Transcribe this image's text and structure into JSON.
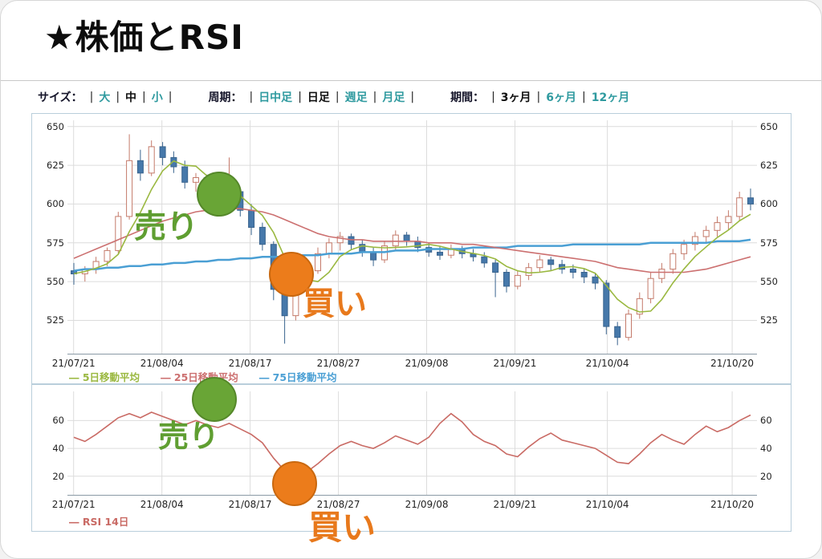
{
  "page": {
    "title": "★株価とRSI"
  },
  "toolbar": {
    "separator": "|",
    "size": {
      "label": "サイズ：",
      "options": [
        {
          "label": "大",
          "selected": false
        },
        {
          "label": "中",
          "selected": true
        },
        {
          "label": "小",
          "selected": false
        }
      ]
    },
    "period": {
      "label": "周期：",
      "options": [
        {
          "label": "日中足",
          "selected": false
        },
        {
          "label": "日足",
          "selected": true
        },
        {
          "label": "週足",
          "selected": false
        },
        {
          "label": "月足",
          "selected": false
        }
      ]
    },
    "range": {
      "label": "期間：",
      "options": [
        {
          "label": "3ヶ月",
          "selected": true
        },
        {
          "label": "6ヶ月",
          "selected": false
        },
        {
          "label": "12ヶ月",
          "selected": false
        }
      ]
    }
  },
  "annotations": {
    "sell_label": "売り",
    "buy_label": "買い",
    "sell_color": "#5f9e31",
    "buy_color": "#e8791c"
  },
  "chart_data": [
    {
      "type": "candlestick",
      "name": "price-chart",
      "dash": "―",
      "x_ticks": [
        "21/07/21",
        "21/08/04",
        "21/08/17",
        "21/08/27",
        "21/09/08",
        "21/09/21",
        "21/10/04",
        "21/10/20"
      ],
      "x_tick_pos": [
        0.009,
        0.137,
        0.265,
        0.393,
        0.521,
        0.649,
        0.783,
        0.964
      ],
      "y_ticks": [
        650,
        625,
        600,
        575,
        550,
        525
      ],
      "y_min": 503,
      "y_max": 654,
      "grid_color": "#dcdcdc",
      "axis_color": "#8a9aa5",
      "up_color": "#ffffff",
      "up_stroke": "#c47a6a",
      "down_color": "#4678aa",
      "down_stroke": "#3a648e",
      "candles": [
        [
          557,
          562,
          548,
          555
        ],
        [
          555,
          560,
          550,
          558
        ],
        [
          558,
          566,
          555,
          563
        ],
        [
          563,
          572,
          560,
          570
        ],
        [
          570,
          595,
          568,
          592
        ],
        [
          592,
          645,
          590,
          628
        ],
        [
          628,
          635,
          615,
          620
        ],
        [
          620,
          641,
          618,
          637
        ],
        [
          637,
          640,
          625,
          630
        ],
        [
          630,
          634,
          620,
          624
        ],
        [
          624,
          628,
          610,
          614
        ],
        [
          614,
          620,
          608,
          617
        ],
        [
          617,
          619,
          603,
          606
        ],
        [
          606,
          610,
          596,
          600
        ],
        [
          600,
          630,
          598,
          608
        ],
        [
          608,
          610,
          592,
          596
        ],
        [
          596,
          600,
          580,
          585
        ],
        [
          585,
          588,
          570,
          574
        ],
        [
          574,
          576,
          538,
          545
        ],
        [
          545,
          548,
          510,
          528
        ],
        [
          528,
          556,
          525,
          552
        ],
        [
          552,
          560,
          548,
          557
        ],
        [
          557,
          572,
          555,
          568
        ],
        [
          568,
          578,
          565,
          575
        ],
        [
          575,
          582,
          570,
          579
        ],
        [
          579,
          581,
          571,
          574
        ],
        [
          574,
          577,
          566,
          569
        ],
        [
          569,
          572,
          560,
          564
        ],
        [
          564,
          576,
          562,
          573
        ],
        [
          573,
          583,
          570,
          580
        ],
        [
          580,
          582,
          573,
          576
        ],
        [
          576,
          579,
          569,
          572
        ],
        [
          572,
          575,
          566,
          569
        ],
        [
          569,
          573,
          564,
          567
        ],
        [
          567,
          574,
          565,
          571
        ],
        [
          571,
          573,
          565,
          568
        ],
        [
          568,
          571,
          563,
          566
        ],
        [
          566,
          569,
          559,
          562
        ],
        [
          562,
          564,
          540,
          556
        ],
        [
          556,
          558,
          543,
          547
        ],
        [
          547,
          557,
          545,
          554
        ],
        [
          554,
          562,
          551,
          559
        ],
        [
          559,
          567,
          556,
          564
        ],
        [
          564,
          566,
          557,
          561
        ],
        [
          561,
          564,
          555,
          558
        ],
        [
          558,
          561,
          552,
          556
        ],
        [
          556,
          558,
          549,
          553
        ],
        [
          553,
          555,
          545,
          549
        ],
        [
          549,
          551,
          516,
          521
        ],
        [
          521,
          524,
          509,
          514
        ],
        [
          514,
          532,
          512,
          529
        ],
        [
          529,
          543,
          526,
          539
        ],
        [
          539,
          556,
          536,
          552
        ],
        [
          552,
          562,
          549,
          558
        ],
        [
          558,
          571,
          555,
          568
        ],
        [
          568,
          577,
          564,
          574
        ],
        [
          574,
          582,
          570,
          579
        ],
        [
          579,
          586,
          575,
          583
        ],
        [
          583,
          592,
          579,
          588
        ],
        [
          588,
          596,
          583,
          592
        ],
        [
          592,
          608,
          589,
          604
        ],
        [
          604,
          610,
          596,
          600
        ]
      ],
      "ma25": [
        565,
        568,
        571,
        574,
        577,
        580,
        583,
        586,
        589,
        591,
        593,
        595,
        596,
        597,
        597,
        597,
        596,
        595,
        593,
        590,
        587,
        584,
        581,
        579,
        578,
        577,
        577,
        576,
        576,
        576,
        576,
        576,
        575,
        575,
        575,
        574,
        574,
        573,
        572,
        571,
        570,
        569,
        568,
        567,
        566,
        565,
        564,
        563,
        561,
        559,
        558,
        557,
        556,
        556,
        556,
        556,
        557,
        558,
        560,
        562,
        564,
        566
      ],
      "ma75": [
        557,
        558,
        558,
        559,
        559,
        560,
        560,
        561,
        561,
        562,
        562,
        563,
        563,
        564,
        564,
        565,
        565,
        566,
        566,
        566,
        567,
        567,
        567,
        568,
        568,
        568,
        569,
        569,
        569,
        570,
        570,
        570,
        571,
        571,
        571,
        571,
        572,
        572,
        572,
        572,
        573,
        573,
        573,
        573,
        573,
        574,
        574,
        574,
        574,
        574,
        574,
        574,
        575,
        575,
        575,
        575,
        575,
        575,
        576,
        576,
        576,
        577
      ],
      "legend": [
        {
          "label": "5日移動平均",
          "color": "#9ab840"
        },
        {
          "label": "25日移動平均",
          "color": "#cc7070"
        },
        {
          "label": "75日移動平均",
          "color": "#4a9fd4"
        }
      ]
    },
    {
      "type": "line",
      "name": "rsi-chart",
      "dash": "―",
      "x_ticks": [
        "21/07/21",
        "21/08/04",
        "21/08/17",
        "21/08/27",
        "21/09/08",
        "21/09/21",
        "21/10/04",
        "21/10/20"
      ],
      "x_tick_pos": [
        0.009,
        0.137,
        0.265,
        0.393,
        0.521,
        0.649,
        0.783,
        0.964
      ],
      "y_ticks": [
        60,
        40,
        20
      ],
      "y_min": 6,
      "y_max": 81,
      "grid_color": "#dcdcdc",
      "axis_color": "#8a9aa5",
      "line_color": "#c96a64",
      "values": [
        48,
        45,
        50,
        56,
        62,
        65,
        62,
        66,
        63,
        60,
        57,
        60,
        57,
        55,
        58,
        54,
        50,
        44,
        33,
        24,
        20,
        23,
        29,
        36,
        42,
        45,
        42,
        40,
        44,
        49,
        46,
        43,
        48,
        58,
        65,
        59,
        50,
        45,
        42,
        36,
        34,
        41,
        47,
        51,
        46,
        44,
        42,
        40,
        35,
        30,
        29,
        36,
        44,
        50,
        46,
        43,
        50,
        56,
        52,
        55,
        60,
        64
      ],
      "legend": [
        {
          "label": "RSI 14日",
          "color": "#c96a64"
        }
      ]
    }
  ]
}
